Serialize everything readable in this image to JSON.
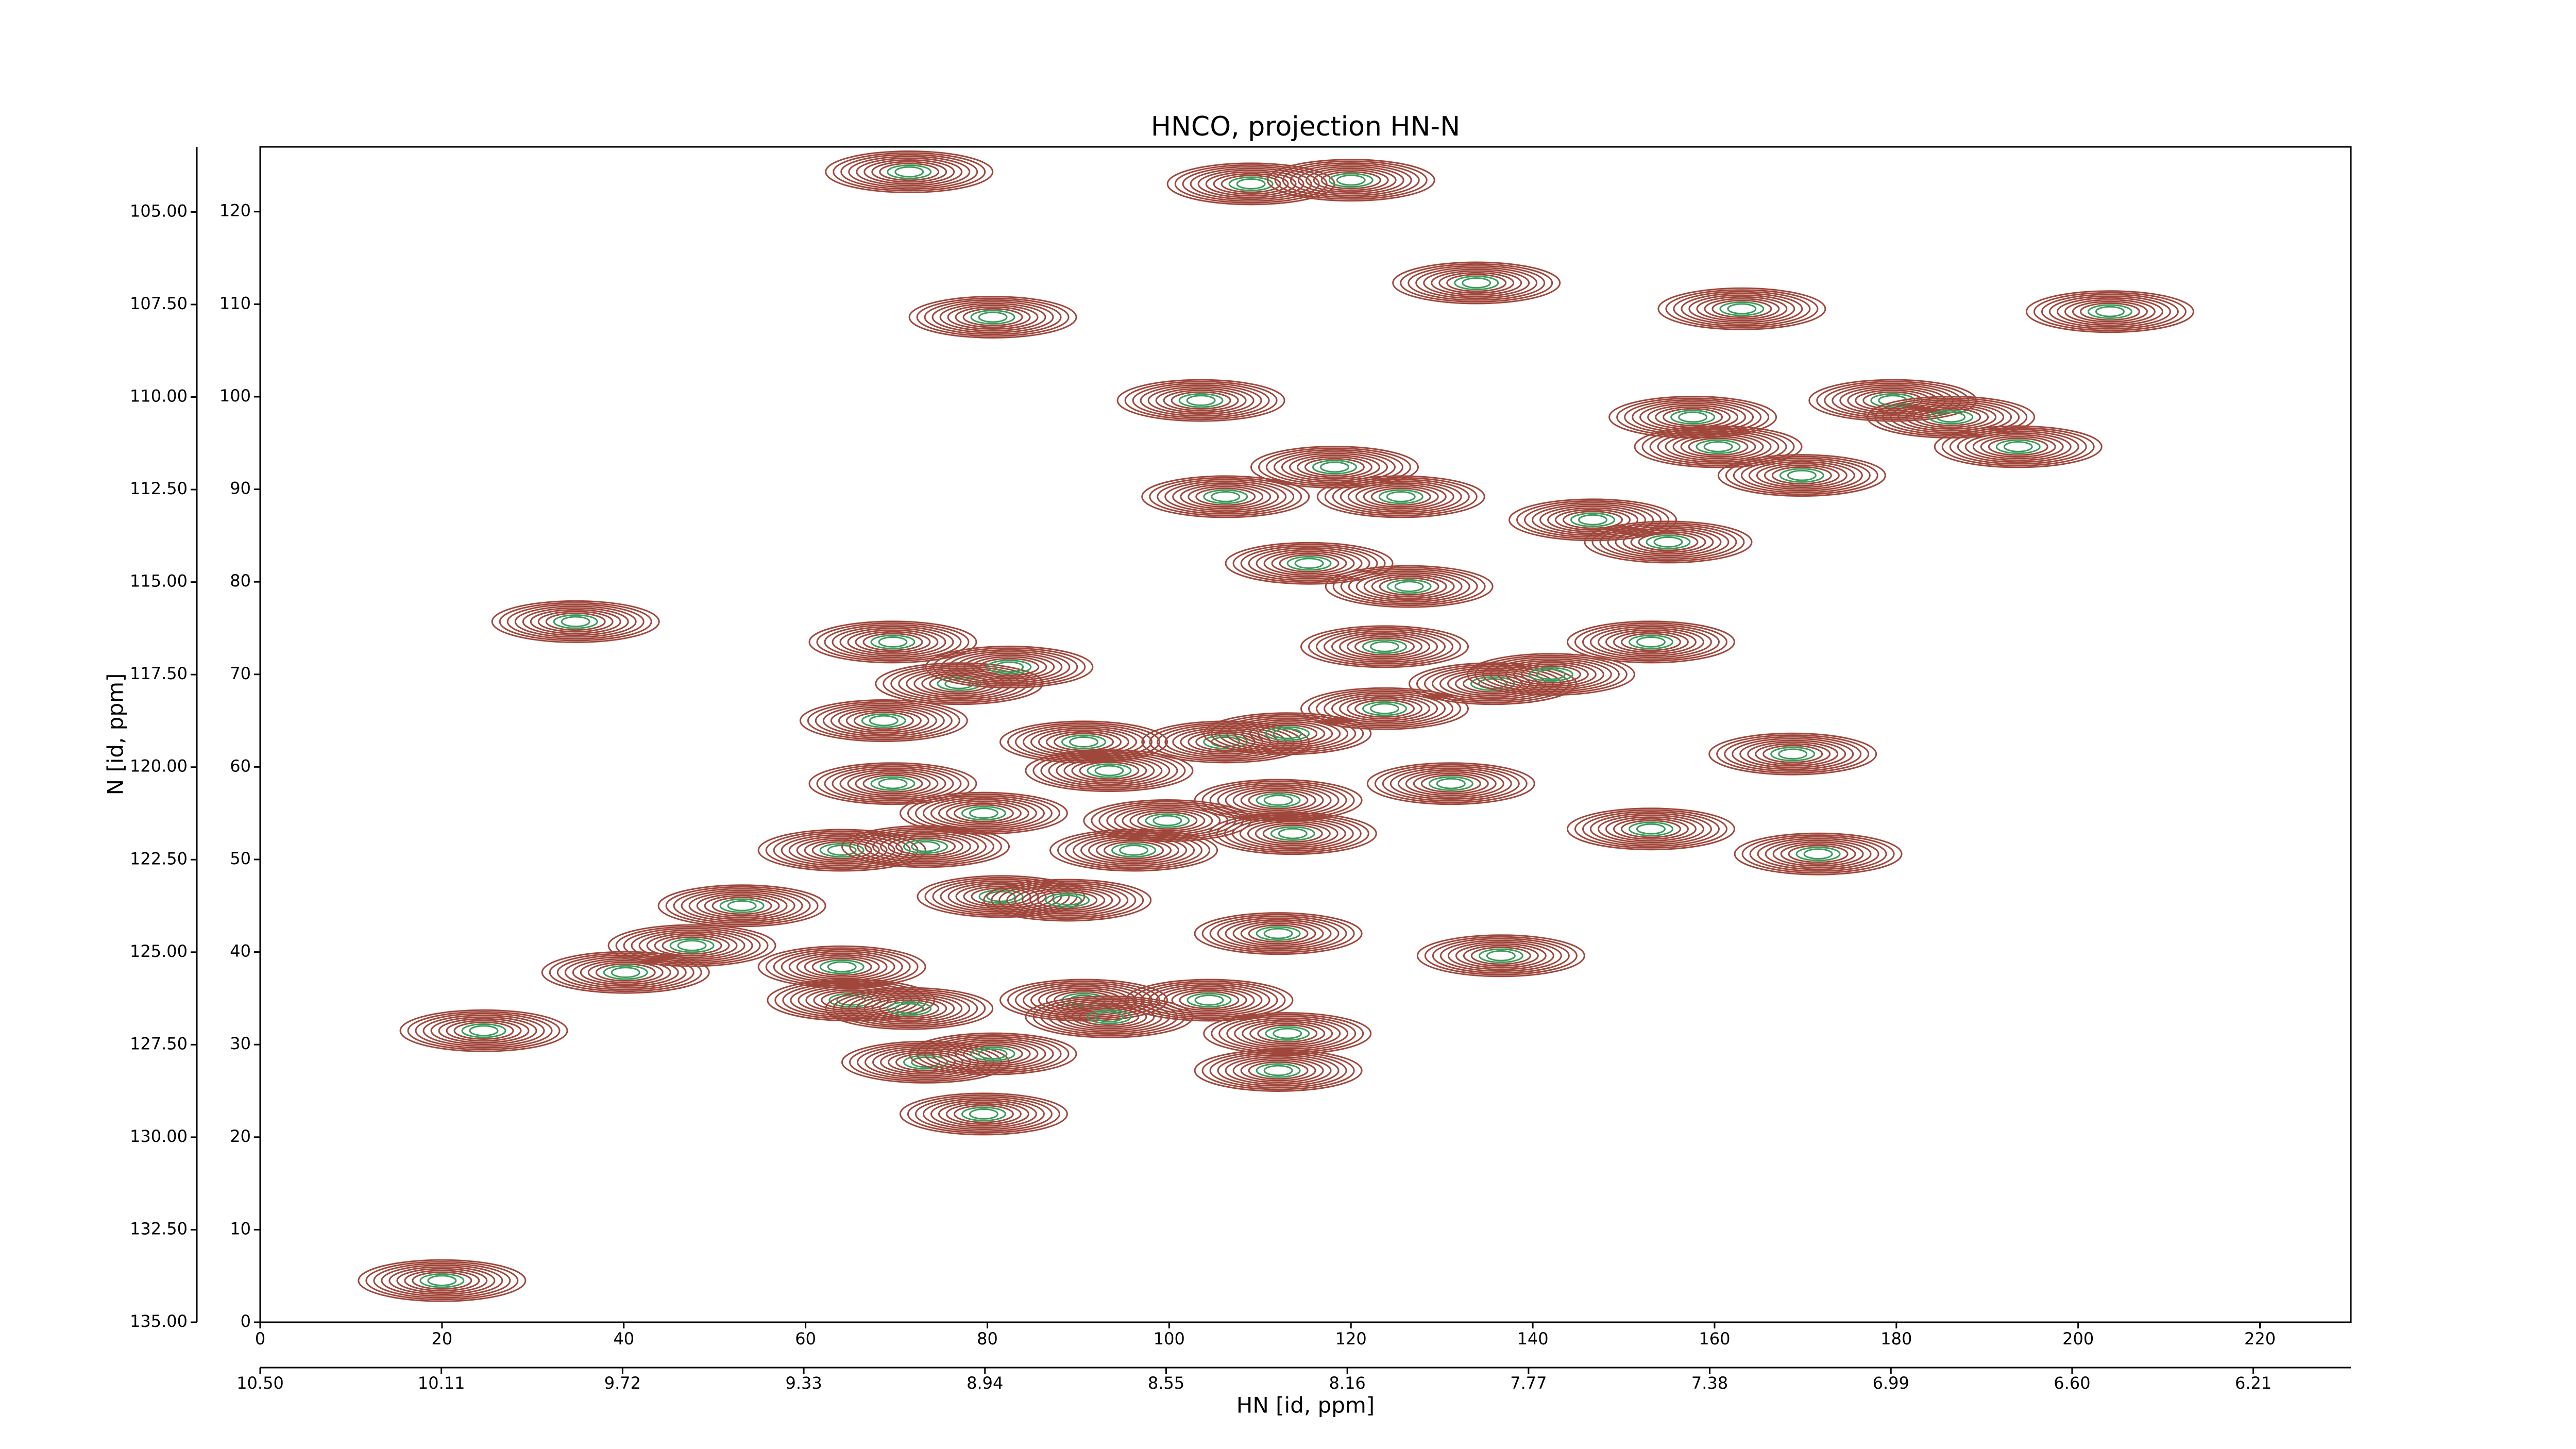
{
  "chart_data": {
    "type": "contour",
    "title": "HNCO, projection HN-N",
    "xlabel": "HN [id, ppm]",
    "ylabel": "N [id, ppm]",
    "x": [
      71.4,
      80.6,
      109,
      120,
      133.8,
      163,
      203.5,
      34.7,
      24.6,
      20,
      40.2,
      47.5,
      53,
      64,
      64,
      65,
      69.6,
      68.6,
      69.6,
      73.2,
      71.4,
      73.2,
      79.6,
      80.6,
      76.9,
      82.4,
      79.6,
      81.5,
      88.8,
      90.6,
      93.4,
      96.1,
      99.8,
      90.6,
      104.4,
      93.4,
      106.2,
      113,
      112,
      113.6,
      112,
      113,
      112,
      106.2,
      103.5,
      115.4,
      118.2,
      125.5,
      126.4,
      123.7,
      123.7,
      131,
      135.6,
      136.5,
      142,
      146.6,
      154.9,
      153,
      153,
      157.6,
      169.6,
      168.6,
      171.4,
      160.4,
      179.6,
      186,
      193.4
    ],
    "y": [
      124.3,
      108.6,
      123,
      123.4,
      112.3,
      109.5,
      109.2,
      75.7,
      31.5,
      4.5,
      37.8,
      40.7,
      45,
      51,
      38.4,
      34.8,
      73.5,
      65,
      58.2,
      51.4,
      33.9,
      28.1,
      22.5,
      29,
      69,
      70.8,
      55,
      46,
      45.6,
      62.7,
      59.6,
      51,
      54.2,
      34.8,
      34.8,
      33,
      62.7,
      63.6,
      56.4,
      52.8,
      42,
      31.2,
      27.2,
      89.2,
      99.6,
      82,
      92.4,
      89.2,
      79.5,
      73,
      66.3,
      58.2,
      69,
      39.6,
      70,
      86.7,
      84.3,
      73.5,
      53.3,
      97.8,
      91.5,
      61.4,
      50.6,
      94.6,
      99.6,
      97.8,
      94.6
    ],
    "colors": [
      "#a0473c",
      "#3d9a5c"
    ],
    "xlim": [
      0,
      230
    ],
    "xticks": [
      0,
      20,
      40,
      60,
      80,
      100,
      120,
      140,
      160,
      180,
      200,
      220
    ],
    "ylim": [
      0,
      127
    ],
    "yticks": [
      0,
      10,
      20,
      30,
      40,
      50,
      60,
      70,
      80,
      90,
      100,
      110,
      120
    ],
    "x2lim": [
      10.5,
      6.0
    ],
    "x2ticks": [
      {
        "value": 10.5,
        "label": "10.50"
      },
      {
        "value": 10.11,
        "label": "10.11"
      },
      {
        "value": 9.72,
        "label": "9.72"
      },
      {
        "value": 9.33,
        "label": "9.33"
      },
      {
        "value": 8.94,
        "label": "8.94"
      },
      {
        "value": 8.55,
        "label": "8.55"
      },
      {
        "value": 8.16,
        "label": "8.16"
      },
      {
        "value": 7.77,
        "label": "7.77"
      },
      {
        "value": 7.38,
        "label": "7.38"
      },
      {
        "value": 6.99,
        "label": "6.99"
      },
      {
        "value": 6.6,
        "label": "6.60"
      },
      {
        "value": 6.21,
        "label": "6.21"
      }
    ],
    "y2lim": [
      135,
      103.24
    ],
    "y2ticks": [
      {
        "value": 105,
        "label": "105.00"
      },
      {
        "value": 107.5,
        "label": "107.50"
      },
      {
        "value": 110,
        "label": "110.00"
      },
      {
        "value": 112.5,
        "label": "112.50"
      },
      {
        "value": 115,
        "label": "115.00"
      },
      {
        "value": 117.5,
        "label": "117.50"
      },
      {
        "value": 120,
        "label": "120.00"
      },
      {
        "value": 122.5,
        "label": "122.50"
      },
      {
        "value": 125,
        "label": "125.00"
      },
      {
        "value": 127.5,
        "label": "127.50"
      },
      {
        "value": 130,
        "label": "130.00"
      },
      {
        "value": 132.5,
        "label": "132.50"
      },
      {
        "value": 135,
        "label": "135.00"
      }
    ]
  }
}
